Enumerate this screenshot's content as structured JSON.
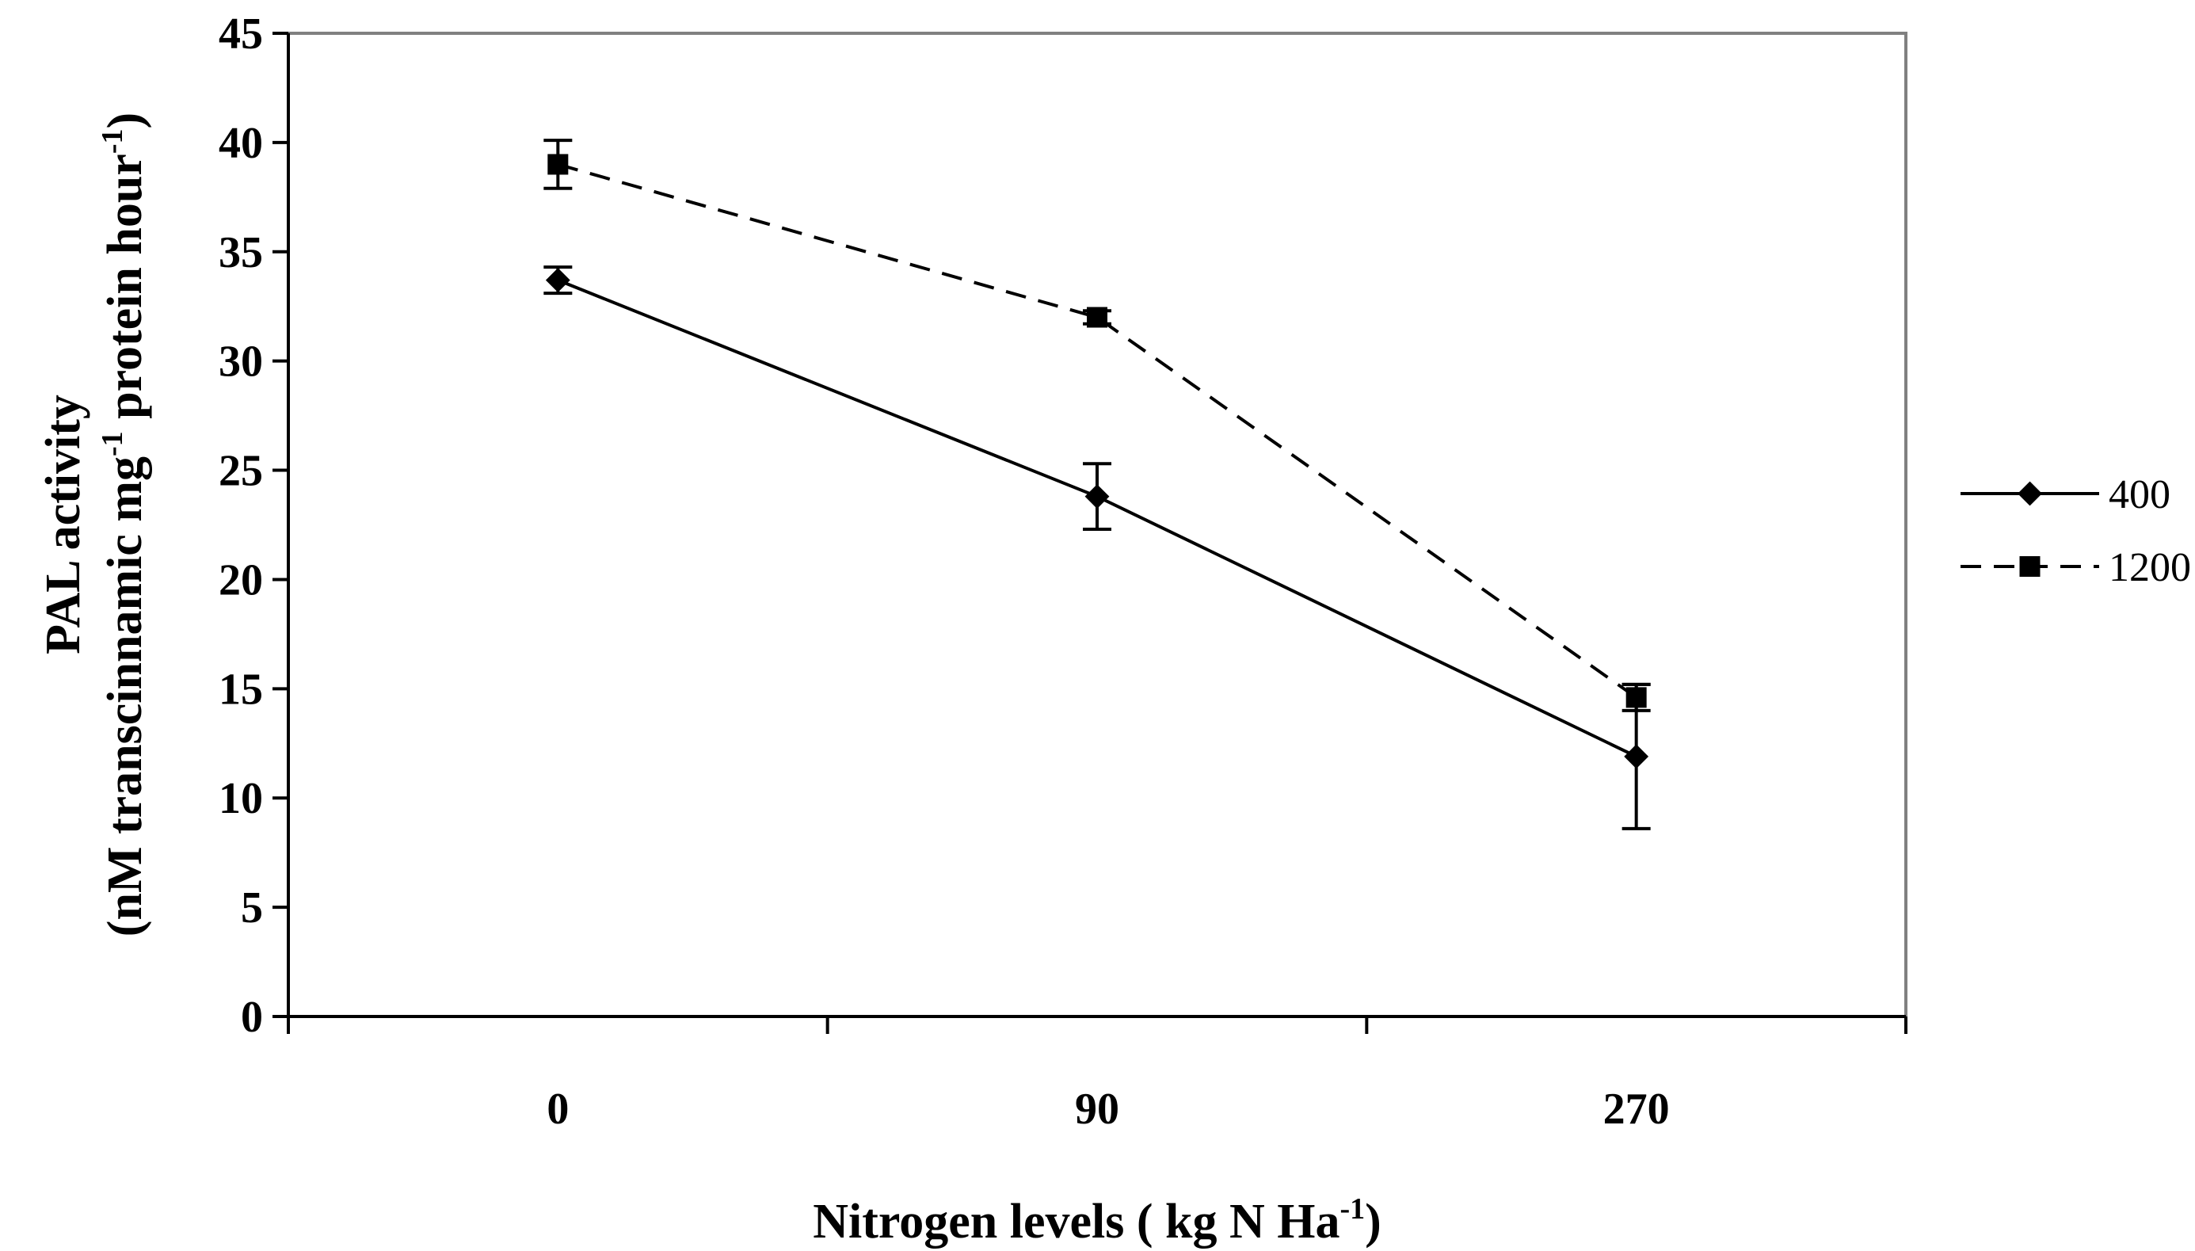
{
  "chart_data": {
    "type": "line",
    "categories": [
      "0",
      "90",
      "270"
    ],
    "xlabel": {
      "main": "Nitrogen levels ( kg N Ha",
      "sup": "-1",
      "end": ")"
    },
    "ylabel": {
      "line1": "PAL activity",
      "line2_a": "(nM transcinnamic mg",
      "line2_sup1": "-1",
      "line2_b": " protein hour",
      "line2_sup2": "-1",
      "line2_c": ")"
    },
    "ylim": [
      0,
      45
    ],
    "yticks": [
      "0",
      "5",
      "10",
      "15",
      "20",
      "25",
      "30",
      "35",
      "40",
      "45"
    ],
    "grid": false,
    "legend": "right",
    "series": [
      {
        "name": "400",
        "marker": "diamond",
        "line": "solid",
        "color": "#000000",
        "values": [
          33.7,
          23.8,
          11.9
        ],
        "errors": [
          0.6,
          1.5,
          3.3
        ]
      },
      {
        "name": "1200",
        "marker": "square",
        "line": "dashed",
        "color": "#000000",
        "values": [
          39.0,
          32.0,
          14.6
        ],
        "errors": [
          1.1,
          0.3,
          0.6
        ]
      }
    ]
  }
}
